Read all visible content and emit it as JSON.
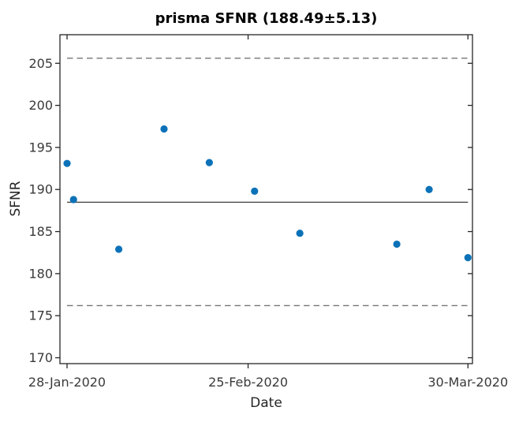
{
  "chart_data": {
    "type": "scatter",
    "title": "prisma SFNR (188.49±5.13)",
    "xlabel": "Date",
    "ylabel": "SFNR",
    "x_dates": [
      "28-Jan-2020",
      "29-Jan-2020",
      "05-Feb-2020",
      "12-Feb-2020",
      "19-Feb-2020",
      "26-Feb-2020",
      "04-Mar-2020",
      "19-Mar-2020",
      "24-Mar-2020",
      "30-Mar-2020"
    ],
    "y_values": [
      193.1,
      188.8,
      182.9,
      197.2,
      193.2,
      189.8,
      184.8,
      183.5,
      190.0,
      181.9
    ],
    "mean": 188.49,
    "std": 5.13,
    "mean_line": 188.49,
    "upper_dashed": 205.6,
    "lower_dashed": 176.2,
    "y_ticks": [
      170,
      175,
      180,
      185,
      190,
      195,
      200,
      205
    ],
    "x_tick_dates": [
      "28-Jan-2020",
      "25-Feb-2020",
      "30-Mar-2020"
    ],
    "ylim": [
      169.3,
      208.4
    ],
    "xlim_days": [
      -1.1,
      62.7
    ],
    "x_origin_date": "28-Jan-2020",
    "grid": false,
    "legend_position": "none",
    "colors": {
      "marker": "#0c72b8",
      "mean_line": "#3f3f3f",
      "dashed_line": "#767676",
      "axis": "#262626",
      "tick_label": "#3a3a3a"
    }
  }
}
